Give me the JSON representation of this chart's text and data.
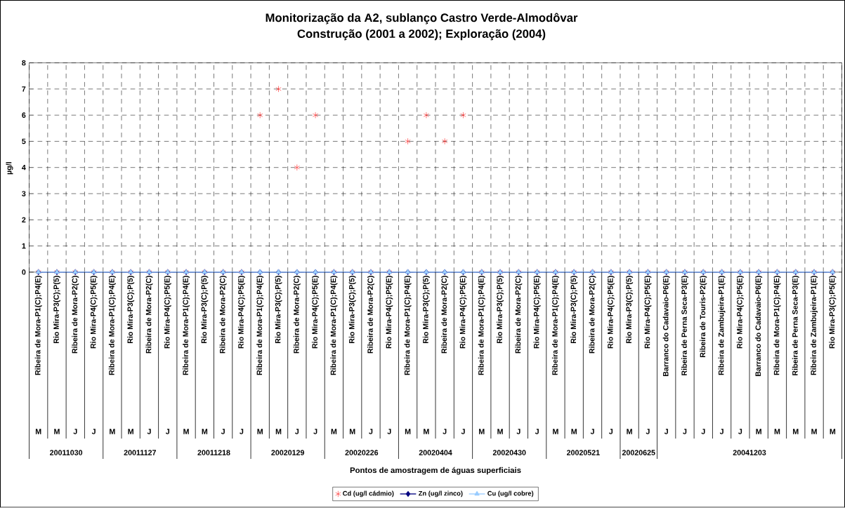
{
  "chart_data": {
    "type": "scatter",
    "title": "Monitorização da A2, sublanço Castro Verde-Almodôvar",
    "subtitle": "Construção (2001 a 2002); Exploração (2004)",
    "ylabel": "µg/l",
    "categories": [
      "Ribeira de Mora-P1(C);P4(E)",
      "Rio Mira-P3(C);P(5)",
      "Ribeira de Mora-P2(C)",
      "Rio Mira-P4(C);P5(E)",
      "Ribeira de Mora-P1(C);P4(E)",
      "Rio Mira-P3(C);P(5)",
      "Ribeira de Mora-P2(C)",
      "Rio Mira-P4(C);P5(E)",
      "Ribeira de Mora-P1(C);P4(E)",
      "Rio Mira-P3(C);P(5)",
      "Ribeira de Mora-P2(C)",
      "Rio Mira-P4(C);P5(E)",
      "Ribeira de Mora-P1(C);P4(E)",
      "Rio Mira-P3(C);P(5)",
      "Ribeira de Mora-P2(C)",
      "Rio Mira-P4(C);P5(E)",
      "Ribeira de Mora-P1(C);P4(E)",
      "Rio Mira-P3(C);P(5)",
      "Ribeira de Mora-P2(C)",
      "Rio Mira-P4(C);P5(E)",
      "Ribeira de Mora-P1(C);P4(E)",
      "Rio Mira-P3(C);P(5)",
      "Ribeira de Mora-P2(C)",
      "Rio Mira-P4(C);P5(E)",
      "Ribeira de Mora-P1(C);P4(E)",
      "Rio Mira-P3(C);P(5)",
      "Ribeira de Mora-P2(C)",
      "Rio Mira-P4(C);P5(E)",
      "Ribeira de Mora-P1(C);P4(E)",
      "Rio Mira-P3(C);P(5)",
      "Ribeira de Mora-P2(C)",
      "Rio Mira-P4(C);P5(E)",
      "Rio Mira-P3(C);P(5)",
      "Rio Mira-P4(C);P5(E)",
      "Barranco do Cadavaio-P6(E)",
      "Ribeira de Perna Seca-P3(E)",
      "Ribeira de Touris-P2(E)",
      "Ribeira de Zambujeira-P1(E)",
      "Rio Mira-P4(C);P5(E)",
      "Barranco do Cadavaio-P6(E)",
      "Ribeira de Mora-P1(C);P4(E)",
      "Ribeira de Perna Seca-P3(E)",
      "Ribeira de Zambujeira-P1(E)",
      "Rio Mira-P3(C);P5(E)"
    ],
    "series": [
      {
        "name": "Cd (ug/l cádmio)",
        "type": "scatter",
        "marker": "cross",
        "color": "#ff0000",
        "values": [
          0,
          0,
          0,
          0,
          0,
          0,
          0,
          0,
          0,
          0,
          0,
          0,
          6,
          7,
          4,
          6,
          0,
          0,
          0,
          0,
          5,
          6,
          5,
          6,
          0,
          0,
          0,
          0,
          0,
          0,
          0,
          0,
          0,
          0,
          0,
          0,
          0,
          0,
          0,
          0,
          0,
          0,
          0,
          0
        ]
      },
      {
        "name": "Zn (ug/l zinco)",
        "type": "line",
        "marker": "diamond",
        "color": "#000080",
        "values": [
          0,
          0,
          0,
          0,
          0,
          0,
          0,
          0,
          0,
          0,
          0,
          0,
          0,
          0,
          0,
          0,
          0,
          0,
          0,
          0,
          0,
          0,
          0,
          0,
          0,
          0,
          0,
          0,
          0,
          0,
          0,
          0,
          0,
          0,
          0,
          0,
          0,
          0,
          0,
          0,
          0,
          0,
          0,
          0
        ]
      },
      {
        "name": "Cu (ug/l cobre)",
        "type": "line",
        "marker": "triangle",
        "color": "#99ccff",
        "values": [
          0,
          0,
          0,
          0,
          0,
          0,
          0,
          0,
          0,
          0,
          0,
          0,
          0,
          0,
          0,
          0,
          0,
          0,
          0,
          0,
          0,
          0,
          0,
          0,
          0,
          0,
          0,
          0,
          0,
          0,
          0,
          0,
          0,
          0,
          0,
          0,
          0,
          0,
          0,
          0,
          0,
          0,
          0,
          0
        ]
      }
    ],
    "ylim": [
      0,
      8
    ],
    "yticks": [
      0,
      1,
      2,
      3,
      4,
      5,
      6,
      7,
      8
    ],
    "grid": true,
    "legend": "bottom",
    "annotations": [
      "M",
      "M",
      "J",
      "J",
      "M",
      "M",
      "J",
      "J",
      "M",
      "M",
      "J",
      "J",
      "M",
      "M",
      "J",
      "J",
      "M",
      "M",
      "J",
      "J",
      "M",
      "M",
      "J",
      "J",
      "M",
      "M",
      "J",
      "J",
      "M",
      "M",
      "J",
      "J",
      "M",
      "J",
      "J",
      "J",
      "J",
      "J",
      "J",
      "M",
      "M",
      "M",
      "M",
      "M",
      "20011030",
      "20011127",
      "20011218",
      "20020129",
      "20020226",
      "20020404",
      "20020430",
      "20020521",
      "20020625",
      "20041203",
      "Pontos de amostragem de águas superficiais"
    ]
  }
}
